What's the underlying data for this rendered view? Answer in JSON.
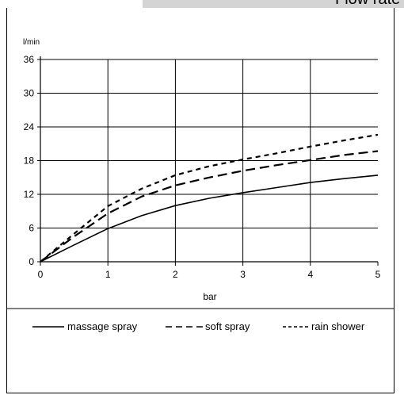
{
  "chart_data": {
    "type": "line",
    "title": "Flow rate diagram",
    "xlabel": "bar",
    "ylabel": "l/min",
    "xlim": [
      0,
      5
    ],
    "ylim": [
      0,
      36
    ],
    "xticks": [
      0,
      1,
      2,
      3,
      4,
      5
    ],
    "yticks": [
      0,
      6,
      12,
      18,
      24,
      30,
      36
    ],
    "grid": true,
    "legend_position": "bottom",
    "x": [
      0,
      0.5,
      1,
      1.5,
      2,
      2.5,
      3,
      3.5,
      4,
      4.5,
      5
    ],
    "series": [
      {
        "name": "massage spray",
        "style": "solid",
        "values": [
          0,
          3.0,
          5.9,
          8.2,
          10.0,
          11.3,
          12.3,
          13.2,
          14.1,
          14.8,
          15.4
        ]
      },
      {
        "name": "soft spray",
        "style": "dashed",
        "values": [
          0,
          4.5,
          8.6,
          11.6,
          13.6,
          15.0,
          16.2,
          17.2,
          18.1,
          19.0,
          19.7
        ]
      },
      {
        "name": "rain shower",
        "style": "dotted",
        "values": [
          0,
          5.0,
          9.9,
          13.0,
          15.4,
          17.0,
          18.2,
          19.3,
          20.5,
          21.6,
          22.6
        ]
      }
    ]
  }
}
